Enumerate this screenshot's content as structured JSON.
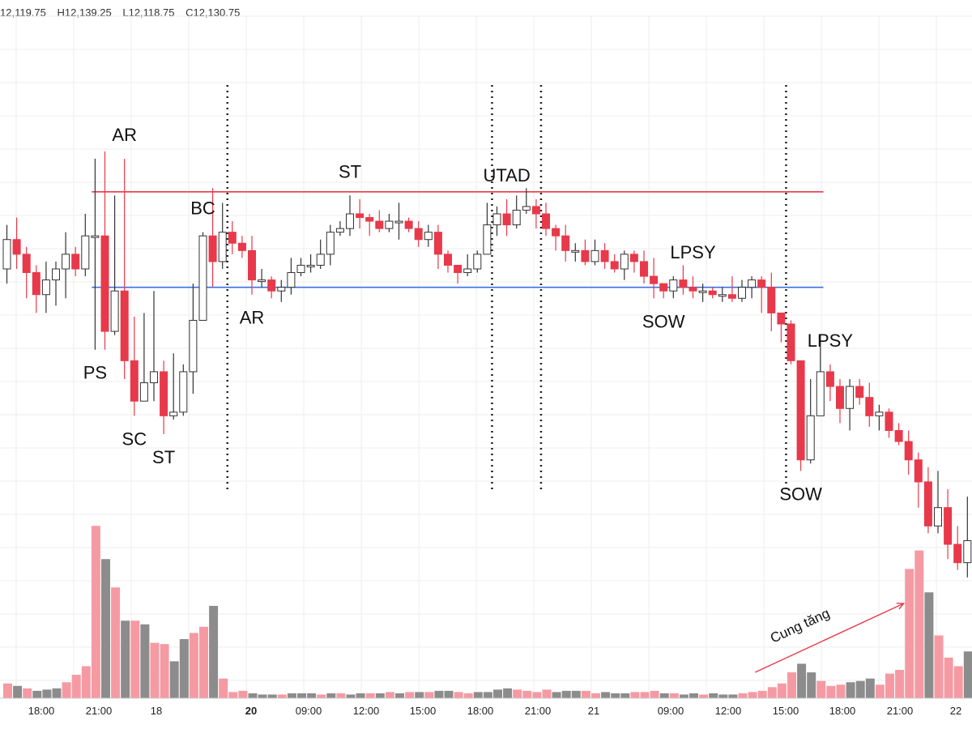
{
  "header": {
    "open": "12,119.75",
    "high": "H12,139.25",
    "low": "L12,118.75",
    "close": "C12,130.75"
  },
  "colors": {
    "up_body": "#ffffff",
    "up_border": "#333333",
    "down_body": "#e8394a",
    "volume_up": "#f59aa3",
    "volume_down": "#8c8c8c",
    "resistance_line": "#e8394a",
    "support_line": "#3d6fe0",
    "grid": "#eeeeee"
  },
  "chart_data": {
    "type": "candlestick",
    "time_labels": [
      {
        "label": "18:00",
        "bold": false
      },
      {
        "label": "21:00",
        "bold": false
      },
      {
        "label": "18",
        "bold": false
      },
      {
        "label": "20",
        "bold": true
      },
      {
        "label": "09:00",
        "bold": false
      },
      {
        "label": "12:00",
        "bold": false
      },
      {
        "label": "15:00",
        "bold": false
      },
      {
        "label": "18:00",
        "bold": false
      },
      {
        "label": "21:00",
        "bold": false
      },
      {
        "label": "21",
        "bold": false
      },
      {
        "label": "09:00",
        "bold": false
      },
      {
        "label": "12:00",
        "bold": false
      },
      {
        "label": "15:00",
        "bold": false
      },
      {
        "label": "18:00",
        "bold": false
      },
      {
        "label": "21:00",
        "bold": false
      },
      {
        "label": "22",
        "bold": false
      }
    ],
    "price_range": [
      12050,
      12200
    ],
    "resistance": 12161,
    "support": 12135,
    "candles": [
      [
        12140,
        12148,
        12152,
        12136
      ],
      [
        12148,
        12144,
        12154,
        12140
      ],
      [
        12144,
        12139,
        12146,
        12132
      ],
      [
        12139,
        12133,
        12141,
        12128
      ],
      [
        12133,
        12137,
        12142,
        12128
      ],
      [
        12137,
        12140,
        12142,
        12130
      ],
      [
        12140,
        12144,
        12150,
        12132
      ],
      [
        12144,
        12140,
        12146,
        12138
      ],
      [
        12140,
        12149,
        12155,
        12138
      ],
      [
        12149,
        12149,
        12170,
        12118
      ],
      [
        12149,
        12123,
        12172,
        12118
      ],
      [
        12123,
        12134,
        12160,
        12122
      ],
      [
        12134,
        12115,
        12170,
        12110
      ],
      [
        12115,
        12104,
        12127,
        12100
      ],
      [
        12104,
        12109,
        12128,
        12104
      ],
      [
        12109,
        12112,
        12134,
        12104
      ],
      [
        12112,
        12100,
        12115,
        12095
      ],
      [
        12100,
        12101,
        12117,
        12099
      ],
      [
        12101,
        12112,
        12114,
        12100
      ],
      [
        12112,
        12126,
        12136,
        12106
      ],
      [
        12126,
        12149,
        12150,
        12127
      ],
      [
        12149,
        12142,
        12162,
        12135
      ],
      [
        12142,
        12150,
        12158,
        12140
      ],
      [
        12150,
        12147,
        12153,
        12144
      ],
      [
        12147,
        12145,
        12149,
        12143
      ],
      [
        12145,
        12137,
        12149,
        12133
      ],
      [
        12137,
        12137,
        12140,
        12135
      ],
      [
        12137,
        12134,
        12138,
        12132
      ],
      [
        12134,
        12135,
        12137,
        12131
      ],
      [
        12135,
        12139,
        12143,
        12133
      ],
      [
        12139,
        12141,
        12143,
        12138
      ],
      [
        12141,
        12141,
        12144,
        12139
      ],
      [
        12141,
        12144,
        12148,
        12140
      ],
      [
        12144,
        12150,
        12152,
        12141
      ],
      [
        12150,
        12151,
        12153,
        12149
      ],
      [
        12151,
        12155,
        12160,
        12149
      ],
      [
        12155,
        12154,
        12159,
        12151
      ],
      [
        12154,
        12153,
        12155,
        12149
      ],
      [
        12153,
        12151,
        12156,
        12150
      ],
      [
        12151,
        12153,
        12155,
        12150
      ],
      [
        12153,
        12153,
        12158,
        12148
      ],
      [
        12153,
        12151,
        12154,
        12150
      ],
      [
        12151,
        12148,
        12153,
        12146
      ],
      [
        12148,
        12150,
        12152,
        12146
      ],
      [
        12150,
        12144,
        12152,
        12140
      ],
      [
        12144,
        12141,
        12145,
        12139
      ],
      [
        12141,
        12139,
        12141,
        12136
      ],
      [
        12139,
        12140,
        12144,
        12138
      ],
      [
        12140,
        12144,
        12145,
        12139
      ],
      [
        12144,
        12152,
        12158,
        12145
      ],
      [
        12152,
        12155,
        12157,
        12149
      ],
      [
        12155,
        12152,
        12159,
        12149
      ],
      [
        12152,
        12156,
        12160,
        12151
      ],
      [
        12156,
        12157,
        12162,
        12155
      ],
      [
        12157,
        12155,
        12159,
        12151
      ],
      [
        12155,
        12151,
        12158,
        12149
      ],
      [
        12151,
        12149,
        12152,
        12145
      ],
      [
        12149,
        12145,
        12152,
        12142
      ],
      [
        12145,
        12145,
        12147,
        12142
      ],
      [
        12145,
        12142,
        12148,
        12141
      ],
      [
        12142,
        12145,
        12148,
        12141
      ],
      [
        12145,
        12142,
        12147,
        12140
      ],
      [
        12142,
        12140,
        12144,
        12139
      ],
      [
        12140,
        12144,
        12145,
        12137
      ],
      [
        12144,
        12142,
        12145,
        12139
      ],
      [
        12142,
        12138,
        12145,
        12136
      ],
      [
        12138,
        12136,
        12143,
        12132
      ],
      [
        12136,
        12134,
        12136,
        12132
      ],
      [
        12134,
        12137,
        12138,
        12132
      ],
      [
        12137,
        12135,
        12141,
        12133
      ],
      [
        12135,
        12134,
        12138,
        12132
      ],
      [
        12134,
        12134,
        12136,
        12131
      ],
      [
        12134,
        12133,
        12135,
        12132
      ],
      [
        12133,
        12133,
        12135,
        12131
      ],
      [
        12133,
        12132,
        12138,
        12131
      ],
      [
        12132,
        12135,
        12137,
        12131
      ],
      [
        12135,
        12137,
        12138,
        12132
      ],
      [
        12137,
        12135,
        12138,
        12128
      ],
      [
        12135,
        12128,
        12139,
        12123
      ],
      [
        12128,
        12125,
        12127,
        12120
      ],
      [
        12125,
        12115,
        12126,
        12114
      ],
      [
        12115,
        12088,
        12115,
        12085
      ],
      [
        12088,
        12100,
        12110,
        12087
      ],
      [
        12100,
        12112,
        12122,
        12100
      ],
      [
        12112,
        12108,
        12114,
        12104
      ],
      [
        12108,
        12102,
        12110,
        12098
      ],
      [
        12102,
        12108,
        12110,
        12096
      ],
      [
        12108,
        12105,
        12110,
        12103
      ],
      [
        12105,
        12100,
        12109,
        12097
      ],
      [
        12100,
        12101,
        12103,
        12096
      ],
      [
        12101,
        12096,
        12102,
        12094
      ],
      [
        12096,
        12093,
        12098,
        12092
      ],
      [
        12093,
        12088,
        12096,
        12084
      ],
      [
        12088,
        12082,
        12090,
        12075
      ],
      [
        12082,
        12070,
        12086,
        12068
      ],
      [
        12070,
        12075,
        12085,
        12068
      ],
      [
        12075,
        12065,
        12080,
        12061
      ],
      [
        12065,
        12060,
        12070,
        12058
      ],
      [
        12060,
        12066,
        12078,
        12056
      ]
    ],
    "volume": [
      [
        1.2,
        "up"
      ],
      [
        1.0,
        "down"
      ],
      [
        0.8,
        "up"
      ],
      [
        0.6,
        "down"
      ],
      [
        0.7,
        "down"
      ],
      [
        0.8,
        "down"
      ],
      [
        1.3,
        "up"
      ],
      [
        1.9,
        "up"
      ],
      [
        2.6,
        "up"
      ],
      [
        14.0,
        "up"
      ],
      [
        11.3,
        "down"
      ],
      [
        9.0,
        "up"
      ],
      [
        6.3,
        "down"
      ],
      [
        6.3,
        "up"
      ],
      [
        6.0,
        "down"
      ],
      [
        4.5,
        "up"
      ],
      [
        4.4,
        "up"
      ],
      [
        3.0,
        "down"
      ],
      [
        4.8,
        "down"
      ],
      [
        5.3,
        "up"
      ],
      [
        5.8,
        "up"
      ],
      [
        7.5,
        "down"
      ],
      [
        1.6,
        "up"
      ],
      [
        0.5,
        "up"
      ],
      [
        0.6,
        "up"
      ],
      [
        0.4,
        "down"
      ],
      [
        0.3,
        "down"
      ],
      [
        0.3,
        "down"
      ],
      [
        0.3,
        "up"
      ],
      [
        0.4,
        "down"
      ],
      [
        0.4,
        "down"
      ],
      [
        0.4,
        "down"
      ],
      [
        0.3,
        "up"
      ],
      [
        0.4,
        "down"
      ],
      [
        0.4,
        "up"
      ],
      [
        0.3,
        "down"
      ],
      [
        0.4,
        "down"
      ],
      [
        0.4,
        "up"
      ],
      [
        0.4,
        "down"
      ],
      [
        0.5,
        "up"
      ],
      [
        0.4,
        "down"
      ],
      [
        0.5,
        "up"
      ],
      [
        0.5,
        "down"
      ],
      [
        0.5,
        "up"
      ],
      [
        0.6,
        "down"
      ],
      [
        0.6,
        "down"
      ],
      [
        0.5,
        "up"
      ],
      [
        0.4,
        "up"
      ],
      [
        0.5,
        "down"
      ],
      [
        0.5,
        "down"
      ],
      [
        0.7,
        "down"
      ],
      [
        0.8,
        "down"
      ],
      [
        0.7,
        "up"
      ],
      [
        0.6,
        "up"
      ],
      [
        0.5,
        "up"
      ],
      [
        0.7,
        "up"
      ],
      [
        0.5,
        "down"
      ],
      [
        0.6,
        "down"
      ],
      [
        0.6,
        "down"
      ],
      [
        0.6,
        "up"
      ],
      [
        0.4,
        "up"
      ],
      [
        0.5,
        "down"
      ],
      [
        0.4,
        "down"
      ],
      [
        0.4,
        "down"
      ],
      [
        0.5,
        "up"
      ],
      [
        0.5,
        "up"
      ],
      [
        0.6,
        "up"
      ],
      [
        0.4,
        "down"
      ],
      [
        0.4,
        "up"
      ],
      [
        0.3,
        "down"
      ],
      [
        0.4,
        "down"
      ],
      [
        0.3,
        "up"
      ],
      [
        0.4,
        "down"
      ],
      [
        0.3,
        "down"
      ],
      [
        0.3,
        "down"
      ],
      [
        0.4,
        "up"
      ],
      [
        0.5,
        "up"
      ],
      [
        0.6,
        "up"
      ],
      [
        0.9,
        "up"
      ],
      [
        1.2,
        "up"
      ],
      [
        2.1,
        "up"
      ],
      [
        2.8,
        "down"
      ],
      [
        2.1,
        "down"
      ],
      [
        1.4,
        "up"
      ],
      [
        1.0,
        "up"
      ],
      [
        1.1,
        "up"
      ],
      [
        1.3,
        "down"
      ],
      [
        1.4,
        "down"
      ],
      [
        1.6,
        "down"
      ],
      [
        1.1,
        "up"
      ],
      [
        2.0,
        "up"
      ],
      [
        2.3,
        "up"
      ],
      [
        10.5,
        "up"
      ],
      [
        12.0,
        "up"
      ],
      [
        8.6,
        "down"
      ],
      [
        5.1,
        "up"
      ],
      [
        3.3,
        "up"
      ],
      [
        2.6,
        "up"
      ],
      [
        3.8,
        "down"
      ]
    ],
    "vertical_markers": [
      22,
      49,
      54,
      79
    ],
    "annotations": [
      {
        "text": "PS",
        "index": 9,
        "placement": "below"
      },
      {
        "text": "AR",
        "index": 12,
        "placement": "above"
      },
      {
        "text": "SC",
        "index": 13,
        "placement": "below"
      },
      {
        "text": "ST",
        "index": 16,
        "placement": "below"
      },
      {
        "text": "BC",
        "index": 20,
        "placement": "above"
      },
      {
        "text": "AR",
        "index": 25,
        "placement": "below"
      },
      {
        "text": "ST",
        "index": 35,
        "placement": "above"
      },
      {
        "text": "UTAD",
        "index": 51,
        "placement": "above"
      },
      {
        "text": "SOW",
        "index": 67,
        "placement": "below"
      },
      {
        "text": "LPSY",
        "index": 70,
        "placement": "above"
      },
      {
        "text": "SOW",
        "index": 81,
        "placement": "below"
      },
      {
        "text": "LPSY",
        "index": 84,
        "placement": "above"
      }
    ],
    "arrow_annotation": {
      "text": "Cung tăng",
      "from_index": 77,
      "to_index": 92
    }
  }
}
